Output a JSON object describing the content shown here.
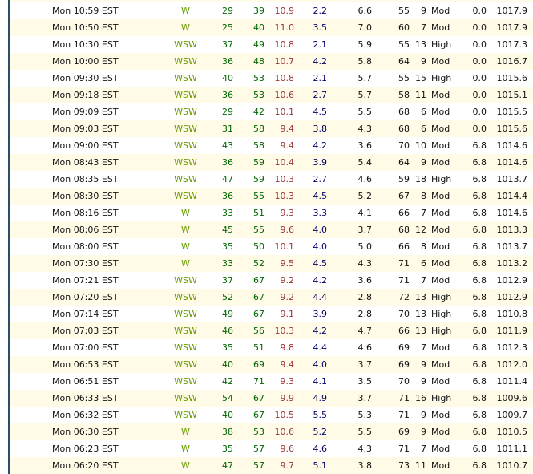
{
  "table": {
    "columns": [
      "time",
      "dir",
      "wind_avg",
      "wind_gust",
      "temp",
      "val_blue",
      "val_black",
      "humidity",
      "rating_num",
      "rating_label",
      "rain",
      "pressure"
    ],
    "rows": [
      {
        "time": "Mon 10:59 EST",
        "dir": "W",
        "v1": "29",
        "v2": "39",
        "v3": "10.9",
        "v4": "2.2",
        "v5": "6.6",
        "v6": "55",
        "rnum": "9",
        "rword": "Mod",
        "rain": "0.0",
        "press": "1017.9"
      },
      {
        "time": "Mon 10:50 EST",
        "dir": "W",
        "v1": "25",
        "v2": "40",
        "v3": "11.0",
        "v4": "3.5",
        "v5": "7.0",
        "v6": "60",
        "rnum": "7",
        "rword": "Mod",
        "rain": "0.0",
        "press": "1017.9"
      },
      {
        "time": "Mon 10:30 EST",
        "dir": "WSW",
        "v1": "37",
        "v2": "49",
        "v3": "10.8",
        "v4": "2.1",
        "v5": "5.9",
        "v6": "55",
        "rnum": "13",
        "rword": "High",
        "rain": "0.0",
        "press": "1017.3"
      },
      {
        "time": "Mon 10:00 EST",
        "dir": "WSW",
        "v1": "36",
        "v2": "48",
        "v3": "10.7",
        "v4": "4.2",
        "v5": "5.8",
        "v6": "64",
        "rnum": "9",
        "rword": "Mod",
        "rain": "0.0",
        "press": "1016.7"
      },
      {
        "time": "Mon 09:30 EST",
        "dir": "WSW",
        "v1": "40",
        "v2": "53",
        "v3": "10.8",
        "v4": "2.1",
        "v5": "5.7",
        "v6": "55",
        "rnum": "15",
        "rword": "High",
        "rain": "0.0",
        "press": "1015.6"
      },
      {
        "time": "Mon 09:18 EST",
        "dir": "WSW",
        "v1": "36",
        "v2": "53",
        "v3": "10.6",
        "v4": "2.7",
        "v5": "5.7",
        "v6": "58",
        "rnum": "11",
        "rword": "Mod",
        "rain": "0.0",
        "press": "1015.1"
      },
      {
        "time": "Mon 09:09 EST",
        "dir": "WSW",
        "v1": "29",
        "v2": "42",
        "v3": "10.1",
        "v4": "4.5",
        "v5": "5.5",
        "v6": "68",
        "rnum": "6",
        "rword": "Mod",
        "rain": "0.0",
        "press": "1015.5"
      },
      {
        "time": "Mon 09:03 EST",
        "dir": "WSW",
        "v1": "31",
        "v2": "58",
        "v3": "9.4",
        "v4": "3.8",
        "v5": "4.3",
        "v6": "68",
        "rnum": "6",
        "rword": "Mod",
        "rain": "0.0",
        "press": "1015.6"
      },
      {
        "time": "Mon 09:00 EST",
        "dir": "WSW",
        "v1": "43",
        "v2": "58",
        "v3": "9.4",
        "v4": "4.2",
        "v5": "3.6",
        "v6": "70",
        "rnum": "10",
        "rword": "Mod",
        "rain": "6.8",
        "press": "1014.6"
      },
      {
        "time": "Mon 08:43 EST",
        "dir": "WSW",
        "v1": "36",
        "v2": "59",
        "v3": "10.4",
        "v4": "3.9",
        "v5": "5.4",
        "v6": "64",
        "rnum": "9",
        "rword": "Mod",
        "rain": "6.8",
        "press": "1014.6"
      },
      {
        "time": "Mon 08:35 EST",
        "dir": "WSW",
        "v1": "47",
        "v2": "59",
        "v3": "10.3",
        "v4": "2.7",
        "v5": "4.6",
        "v6": "59",
        "rnum": "18",
        "rword": "High",
        "rain": "6.8",
        "press": "1013.7"
      },
      {
        "time": "Mon 08:30 EST",
        "dir": "WSW",
        "v1": "36",
        "v2": "55",
        "v3": "10.3",
        "v4": "4.5",
        "v5": "5.2",
        "v6": "67",
        "rnum": "8",
        "rword": "Mod",
        "rain": "6.8",
        "press": "1014.4"
      },
      {
        "time": "Mon 08:16 EST",
        "dir": "W",
        "v1": "33",
        "v2": "51",
        "v3": "9.3",
        "v4": "3.3",
        "v5": "4.1",
        "v6": "66",
        "rnum": "7",
        "rword": "Mod",
        "rain": "6.8",
        "press": "1014.6"
      },
      {
        "time": "Mon 08:06 EST",
        "dir": "W",
        "v1": "45",
        "v2": "55",
        "v3": "9.6",
        "v4": "4.0",
        "v5": "3.7",
        "v6": "68",
        "rnum": "12",
        "rword": "Mod",
        "rain": "6.8",
        "press": "1013.3"
      },
      {
        "time": "Mon 08:00 EST",
        "dir": "W",
        "v1": "35",
        "v2": "50",
        "v3": "10.1",
        "v4": "4.0",
        "v5": "5.0",
        "v6": "66",
        "rnum": "8",
        "rword": "Mod",
        "rain": "6.8",
        "press": "1013.7"
      },
      {
        "time": "Mon 07:30 EST",
        "dir": "W",
        "v1": "33",
        "v2": "52",
        "v3": "9.5",
        "v4": "4.5",
        "v5": "4.3",
        "v6": "71",
        "rnum": "6",
        "rword": "Mod",
        "rain": "6.8",
        "press": "1013.2"
      },
      {
        "time": "Mon 07:21 EST",
        "dir": "WSW",
        "v1": "37",
        "v2": "67",
        "v3": "9.2",
        "v4": "4.2",
        "v5": "3.6",
        "v6": "71",
        "rnum": "7",
        "rword": "Mod",
        "rain": "6.8",
        "press": "1012.9"
      },
      {
        "time": "Mon 07:20 EST",
        "dir": "WSW",
        "v1": "52",
        "v2": "67",
        "v3": "9.2",
        "v4": "4.4",
        "v5": "2.8",
        "v6": "72",
        "rnum": "13",
        "rword": "High",
        "rain": "6.8",
        "press": "1012.9"
      },
      {
        "time": "Mon 07:14 EST",
        "dir": "WSW",
        "v1": "49",
        "v2": "67",
        "v3": "9.1",
        "v4": "3.9",
        "v5": "2.8",
        "v6": "70",
        "rnum": "13",
        "rword": "High",
        "rain": "6.8",
        "press": "1010.8"
      },
      {
        "time": "Mon 07:03 EST",
        "dir": "WSW",
        "v1": "46",
        "v2": "56",
        "v3": "10.3",
        "v4": "4.2",
        "v5": "4.7",
        "v6": "66",
        "rnum": "13",
        "rword": "High",
        "rain": "6.8",
        "press": "1011.9"
      },
      {
        "time": "Mon 07:00 EST",
        "dir": "WSW",
        "v1": "35",
        "v2": "51",
        "v3": "9.8",
        "v4": "4.4",
        "v5": "4.6",
        "v6": "69",
        "rnum": "7",
        "rword": "Mod",
        "rain": "6.8",
        "press": "1012.3"
      },
      {
        "time": "Mon 06:53 EST",
        "dir": "WSW",
        "v1": "40",
        "v2": "69",
        "v3": "9.4",
        "v4": "4.0",
        "v5": "3.7",
        "v6": "69",
        "rnum": "9",
        "rword": "Mod",
        "rain": "6.8",
        "press": "1012.0"
      },
      {
        "time": "Mon 06:51 EST",
        "dir": "WSW",
        "v1": "42",
        "v2": "71",
        "v3": "9.3",
        "v4": "4.1",
        "v5": "3.5",
        "v6": "70",
        "rnum": "9",
        "rword": "Mod",
        "rain": "6.8",
        "press": "1011.4"
      },
      {
        "time": "Mon 06:33 EST",
        "dir": "WSW",
        "v1": "54",
        "v2": "67",
        "v3": "9.9",
        "v4": "4.9",
        "v5": "3.7",
        "v6": "71",
        "rnum": "16",
        "rword": "High",
        "rain": "6.8",
        "press": "1009.6"
      },
      {
        "time": "Mon 06:32 EST",
        "dir": "WSW",
        "v1": "40",
        "v2": "67",
        "v3": "10.5",
        "v4": "5.5",
        "v5": "5.3",
        "v6": "71",
        "rnum": "9",
        "rword": "Mod",
        "rain": "6.8",
        "press": "1009.7"
      },
      {
        "time": "Mon 06:30 EST",
        "dir": "W",
        "v1": "38",
        "v2": "53",
        "v3": "10.6",
        "v4": "5.2",
        "v5": "5.5",
        "v6": "69",
        "rnum": "9",
        "rword": "Mod",
        "rain": "6.8",
        "press": "1010.5"
      },
      {
        "time": "Mon 06:23 EST",
        "dir": "W",
        "v1": "35",
        "v2": "57",
        "v3": "9.6",
        "v4": "4.6",
        "v5": "4.3",
        "v6": "71",
        "rnum": "7",
        "rword": "Mod",
        "rain": "6.8",
        "press": "1011.1"
      },
      {
        "time": "Mon 06:20 EST",
        "dir": "W",
        "v1": "47",
        "v2": "57",
        "v3": "9.7",
        "v4": "5.1",
        "v5": "3.8",
        "v6": "73",
        "rnum": "11",
        "rword": "Mod",
        "rain": "6.8",
        "press": "1010.7"
      }
    ]
  },
  "colors": {
    "row_alt_cream": "#fffbe6",
    "wind_dir_green": "#669900",
    "wind_speed_green": "#006600",
    "temp_maroon": "#993333",
    "value_navy": "#000066",
    "text_black": "#111111",
    "left_border_navy": "#2a4d68"
  }
}
